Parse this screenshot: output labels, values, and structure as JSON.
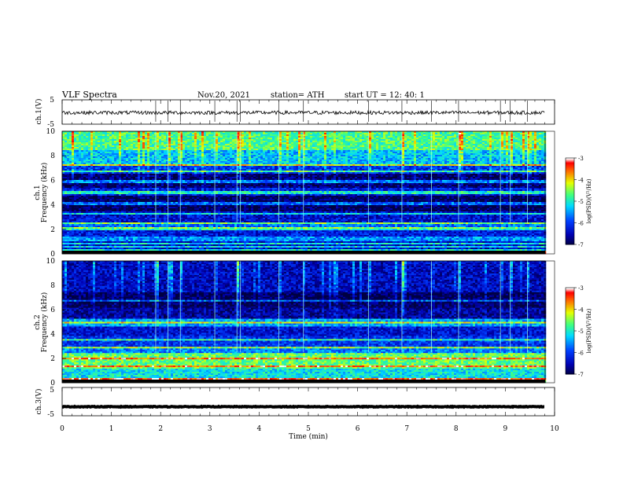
{
  "header": {
    "title": "VLF  Spectra",
    "date": "Nov.20, 2021",
    "station": "station= ATH",
    "start_time": "start  UT  =    12: 40: 1"
  },
  "colorbar_label": "log(PSD)(V²/Hz)",
  "chart_data": [
    {
      "type": "line",
      "name": "ch1-waveform",
      "ylabel": "ch.1(V)",
      "ylim": [
        -5,
        5
      ],
      "yticks": [
        "5",
        "-5"
      ],
      "xlim": [
        0,
        10
      ],
      "trace": {
        "mean": -0.3,
        "noise_range": [
          -1.5,
          1.0
        ],
        "end_time": 9.8
      },
      "spikes_min": [
        1.9,
        2.15,
        2.4,
        3.1,
        3.55,
        3.62,
        4.4,
        4.9,
        6.22,
        6.9,
        7.5,
        8.05,
        8.9,
        9.1,
        9.45
      ]
    },
    {
      "type": "heatmap",
      "name": "ch1-spectrogram",
      "ylabel": "ch.1\nFrequency  (kHz)",
      "ylim": [
        0,
        10
      ],
      "yticks": [
        "0",
        "2",
        "4",
        "6",
        "8",
        "10"
      ],
      "xlim": [
        0,
        9.8
      ],
      "color_scale": {
        "min": -7,
        "max": -3,
        "ticks": [
          "-3",
          "-4",
          "-5",
          "-6",
          "-7"
        ]
      },
      "background_level_by_band": [
        {
          "band_khz": [
            0,
            0.3
          ],
          "level": -3.5
        },
        {
          "band_khz": [
            0.3,
            1.0
          ],
          "level": -6.3
        },
        {
          "band_khz": [
            1.0,
            1.4
          ],
          "level": -5.5
        },
        {
          "band_khz": [
            1.4,
            2.0
          ],
          "level": -6.2
        },
        {
          "band_khz": [
            2.0,
            2.6
          ],
          "level": -5.7
        },
        {
          "band_khz": [
            2.6,
            3.4
          ],
          "level": -6.3
        },
        {
          "band_khz": [
            3.4,
            4.8
          ],
          "level": -6.9
        },
        {
          "band_khz": [
            4.8,
            5.4
          ],
          "level": -6.2
        },
        {
          "band_khz": [
            5.4,
            6.6
          ],
          "level": -6.8
        },
        {
          "band_khz": [
            6.6,
            7.2
          ],
          "level": -6.0
        },
        {
          "band_khz": [
            7.2,
            8.4
          ],
          "level": -5.3
        },
        {
          "band_khz": [
            8.4,
            10.0
          ],
          "level": -4.7
        }
      ],
      "horizontal_lines_khz": [
        0.3,
        0.55,
        0.8,
        2.05,
        2.5,
        3.3,
        4.1,
        5.0,
        5.9,
        6.75,
        7.3
      ],
      "bursts_min": [
        1.9,
        2.15,
        2.4,
        3.1,
        3.55,
        3.62,
        4.4,
        4.9,
        6.22,
        6.9,
        7.5,
        8.05,
        8.9,
        9.1,
        9.45
      ]
    },
    {
      "type": "heatmap",
      "name": "ch2-spectrogram",
      "ylabel": "ch.2\nFrequency  (kHz)",
      "ylim": [
        0,
        10
      ],
      "yticks": [
        "0",
        "2",
        "4",
        "6",
        "8",
        "10"
      ],
      "xlim": [
        0,
        9.8
      ],
      "color_scale": {
        "min": -7,
        "max": -3,
        "ticks": [
          "-3",
          "-4",
          "-5",
          "-6",
          "-7"
        ]
      },
      "background_level_by_band": [
        {
          "band_khz": [
            0,
            0.4
          ],
          "level": -4.5
        },
        {
          "band_khz": [
            0.4,
            1.2
          ],
          "level": -5.1
        },
        {
          "band_khz": [
            1.2,
            2.4
          ],
          "level": -4.6
        },
        {
          "band_khz": [
            2.4,
            3.0
          ],
          "level": -5.6
        },
        {
          "band_khz": [
            3.0,
            3.8
          ],
          "level": -6.0
        },
        {
          "band_khz": [
            3.8,
            4.6
          ],
          "level": -6.3
        },
        {
          "band_khz": [
            4.6,
            5.2
          ],
          "level": -5.4
        },
        {
          "band_khz": [
            5.2,
            6.2
          ],
          "level": -6.6
        },
        {
          "band_khz": [
            6.2,
            7.4
          ],
          "level": -6.9
        },
        {
          "band_khz": [
            7.4,
            10.0
          ],
          "level": -6.4
        }
      ],
      "horizontal_lines_khz": [
        0.3,
        1.4,
        2.0,
        2.9,
        3.5,
        4.9,
        6.7
      ],
      "bursts_min": [
        1.9,
        2.15,
        2.4,
        3.1,
        3.55,
        3.62,
        4.4,
        4.9,
        6.22,
        6.9,
        7.5,
        8.05,
        8.9,
        9.1,
        9.45
      ]
    },
    {
      "type": "line",
      "name": "ch3-waveform",
      "ylabel": "ch.3(V)",
      "ylim": [
        -5,
        5
      ],
      "yticks": [
        "5",
        "-5"
      ],
      "xlim": [
        0,
        10
      ],
      "trace": {
        "mean": -1.8,
        "noise_range": [
          -2.0,
          -1.6
        ],
        "end_time": 9.8
      }
    }
  ],
  "x_axis": {
    "label": "Time  (min)",
    "range": [
      0,
      10
    ],
    "ticks": [
      "0",
      "1",
      "2",
      "3",
      "4",
      "5",
      "6",
      "7",
      "8",
      "9",
      "10"
    ]
  }
}
